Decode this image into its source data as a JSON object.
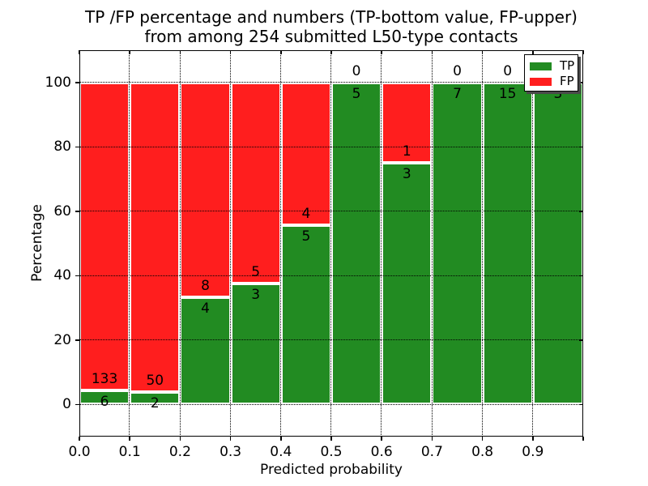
{
  "title": {
    "line1": "TP /FP percentage and numbers (TP-bottom value, FP-upper)",
    "line2": "from among 254 submitted L50-type contacts"
  },
  "axes": {
    "x_label": "Predicted probability",
    "y_label": "Percentage",
    "x_ticks": [
      "0.0",
      "0.1",
      "0.2",
      "0.3",
      "0.4",
      "0.5",
      "0.6",
      "0.7",
      "0.8",
      "0.9"
    ],
    "y_ticks": [
      "0",
      "20",
      "40",
      "60",
      "80",
      "100"
    ]
  },
  "legend": [
    {
      "label": "TP",
      "color": "#228b22"
    },
    {
      "label": "FP",
      "color": "#ff1e1e"
    }
  ],
  "chart_data": {
    "type": "bar",
    "stacked": true,
    "title": "TP /FP percentage and numbers (TP-bottom value, FP-upper) from among 254 submitted L50-type contacts",
    "xlabel": "Predicted probability",
    "ylabel": "Percentage",
    "xlim": [
      0.0,
      1.0
    ],
    "ylim": [
      -10,
      110
    ],
    "bin_width": 0.1,
    "bin_starts": [
      0.0,
      0.1,
      0.2,
      0.3,
      0.4,
      0.5,
      0.6,
      0.7,
      0.8,
      0.9
    ],
    "total_contacts": 254,
    "grid": true,
    "legend_position": "upper right",
    "bar_unit": "percent of bin (TP% bottom, FP% top, summing to 100)",
    "series": [
      {
        "name": "TP",
        "color": "#228b22",
        "counts": [
          6,
          2,
          4,
          3,
          5,
          5,
          3,
          7,
          15,
          3
        ]
      },
      {
        "name": "FP",
        "color": "#ff1e1e",
        "counts": [
          133,
          50,
          8,
          5,
          4,
          0,
          1,
          0,
          0,
          0
        ]
      }
    ]
  }
}
